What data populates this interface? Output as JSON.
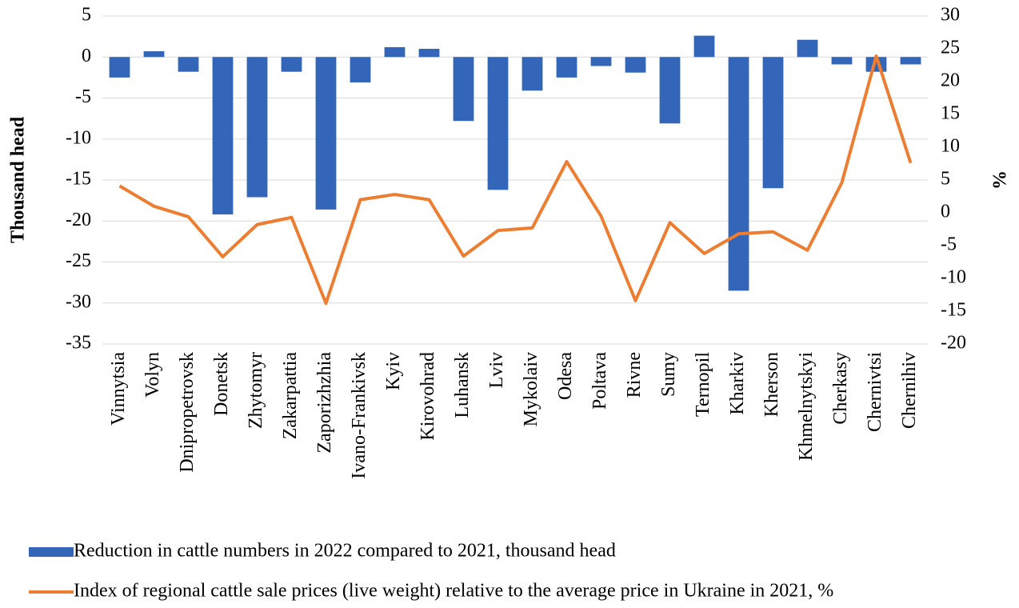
{
  "chart_data": {
    "type": "bar_line",
    "y_label": "Thousand head",
    "y2_label": "%",
    "categories": [
      "Vinnytsia",
      "Volyn",
      "Dnipropetrovsk",
      "Donetsk",
      "Zhytomyr",
      "Zakarpattia",
      "Zaporizhzhia",
      "Ivano-Frankivsk",
      "Kyiv",
      "Kirovohrad",
      "Luhansk",
      "Lviv",
      "Mykolaiv",
      "Odesa",
      "Poltava",
      "Rivne",
      "Sumy",
      "Ternopil",
      "Kharkiv",
      "Kherson",
      "Khmelnytskyi",
      "Cherkasy",
      "Chernivtsi",
      "Chernihiv"
    ],
    "series": [
      {
        "name": "Reduction in cattle numbers in 2022 compared to 2021, thousand head",
        "type": "bar",
        "color": "#3366b8",
        "values": [
          -2.5,
          0.7,
          -1.8,
          -19.2,
          -17.1,
          -1.8,
          -18.6,
          -3.1,
          1.2,
          1.0,
          -7.8,
          -16.2,
          -4.1,
          -2.5,
          -1.1,
          -1.9,
          -8.1,
          2.6,
          -28.5,
          -16.0,
          2.1,
          -0.9,
          -1.8,
          -0.9
        ]
      },
      {
        "name": "Index of regional cattle sale prices (live weight) relative to the average price in Ukraine in 2021, %",
        "type": "line",
        "axis": "y2",
        "color": "#ed7d31",
        "values": [
          4.1,
          1.0,
          -0.6,
          -6.7,
          -1.8,
          -0.7,
          -13.8,
          2.0,
          2.8,
          2.0,
          -6.6,
          -2.7,
          -2.3,
          7.8,
          -0.5,
          -13.4,
          -1.5,
          -6.2,
          -3.2,
          -2.9,
          -5.7,
          4.6,
          23.9,
          7.6
        ]
      }
    ],
    "ylim": [
      -35,
      5
    ],
    "yticks": [
      -35,
      -30,
      -25,
      -20,
      -15,
      -10,
      -5,
      0,
      5
    ],
    "y2lim": [
      -20,
      30
    ],
    "y2ticks": [
      -20,
      -15,
      -10,
      -5,
      0,
      5,
      10,
      15,
      20,
      25,
      30
    ],
    "grid": true,
    "legend": "bottom"
  }
}
